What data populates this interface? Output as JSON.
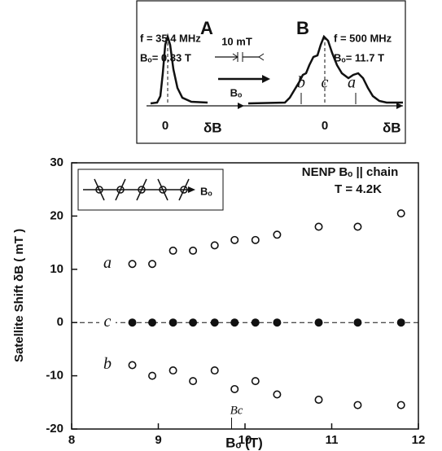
{
  "chart_data": {
    "type": "scatter",
    "title": "NENP Bₒ || chain",
    "subtitle": "T = 4.2K",
    "x_label": "Bₒ  (T)",
    "y_label": "Satellite Shift δB ( mT )",
    "xlim": [
      8,
      12
    ],
    "xticks": [
      8,
      9,
      10,
      11,
      12
    ],
    "ylim": [
      -20,
      30
    ],
    "yticks": [
      -20,
      -10,
      0,
      10,
      20,
      30
    ],
    "x": [
      8.7,
      8.93,
      9.17,
      9.4,
      9.65,
      9.88,
      10.12,
      10.37,
      10.85,
      11.3,
      11.8
    ],
    "series": [
      {
        "name": "a",
        "color": "#111111",
        "marker": "open",
        "values": [
          11,
          11,
          13.5,
          13.5,
          14.5,
          15.5,
          15.5,
          16.5,
          18,
          18,
          20.5
        ]
      },
      {
        "name": "c",
        "color": "#111111",
        "marker": "filled",
        "values": [
          0,
          0,
          0,
          0,
          0,
          0,
          0,
          0,
          0,
          0,
          0
        ]
      },
      {
        "name": "b",
        "color": "#111111",
        "marker": "open",
        "values": [
          -8,
          -10,
          -9,
          -11,
          -9,
          -12.5,
          -11,
          -13.5,
          -14.5,
          -15.5,
          -15.5
        ]
      }
    ],
    "annotations": {
      "critical_field": "Bc",
      "inset_field": "Bₒ"
    },
    "top_inset": {
      "panel_a": "A",
      "freq_a": "f = 35.4 MHz",
      "field_a": "Bₒ= 0.83 T",
      "scale": "10 mT",
      "arrow_label": "Bₒ",
      "zero_a": "0",
      "axis_a": "δB",
      "panel_b": "B",
      "freq_b": "f = 500 MHz",
      "field_b": "Bₒ= 11.7 T",
      "peak_b": "b",
      "peak_c": "c",
      "peak_a": "a",
      "zero_b": "0",
      "axis_b": "δB"
    }
  }
}
